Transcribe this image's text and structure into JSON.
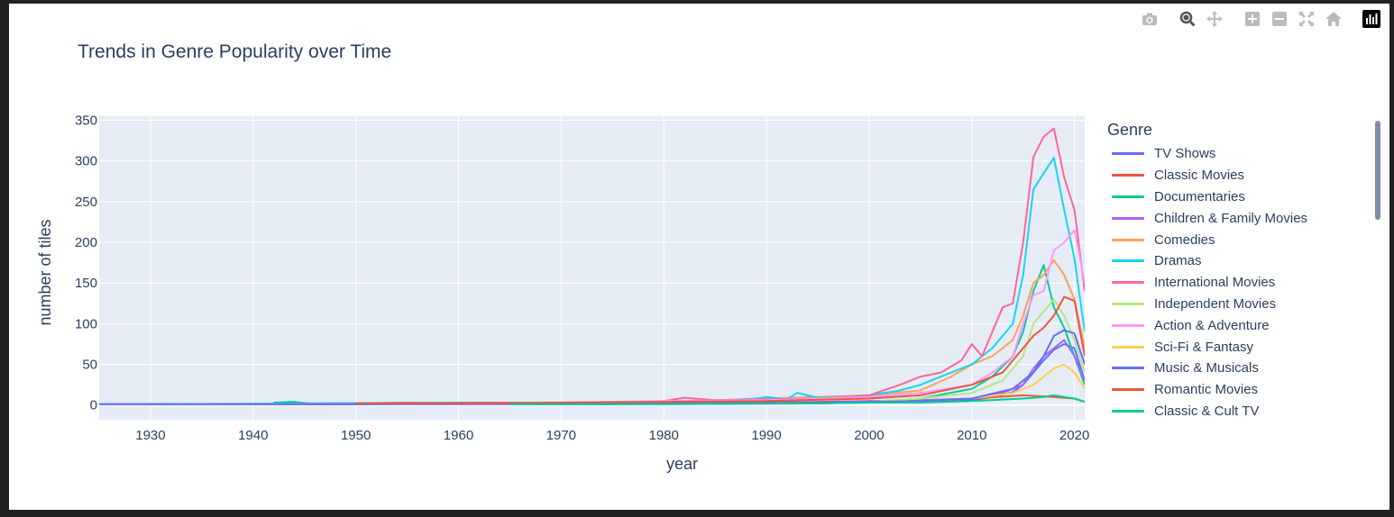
{
  "modebar": {
    "buttons": [
      {
        "name": "camera-icon",
        "color": "#bbbbbb"
      },
      {
        "name": "zoom-icon",
        "color": "#555555"
      },
      {
        "name": "pan-icon",
        "color": "#bbbbbb"
      },
      {
        "name": "zoom-in-icon",
        "color": "#bbbbbb"
      },
      {
        "name": "zoom-out-icon",
        "color": "#bbbbbb"
      },
      {
        "name": "autoscale-icon",
        "color": "#bbbbbb"
      },
      {
        "name": "home-icon",
        "color": "#bbbbbb"
      },
      {
        "name": "plotly-logo-icon",
        "color": "#000000"
      }
    ]
  },
  "chart_data": {
    "type": "line",
    "title": "Trends in Genre Popularity over Time",
    "xlabel": "year",
    "ylabel": "number of tiles",
    "xlim": [
      1925,
      2021
    ],
    "ylim": [
      -18,
      355
    ],
    "x_ticks": [
      1930,
      1940,
      1950,
      1960,
      1970,
      1980,
      1990,
      2000,
      2010,
      2020
    ],
    "y_ticks": [
      0,
      50,
      100,
      150,
      200,
      250,
      300,
      350
    ],
    "grid": true,
    "plot_bgcolor": "#e5ecf6",
    "legend_title": "Genre",
    "legend_position": "right",
    "series": [
      {
        "name": "TV Shows",
        "color": "#636efa",
        "x": [
          1925,
          1975,
          1995,
          2000,
          2005,
          2010,
          2012,
          2014,
          2015,
          2016,
          2017,
          2018,
          2019,
          2020,
          2021
        ],
        "y": [
          1,
          1,
          2,
          3,
          4,
          6,
          10,
          16,
          25,
          40,
          55,
          68,
          75,
          70,
          30
        ]
      },
      {
        "name": "Classic Movies",
        "color": "#ef553b",
        "x": [
          1942,
          1950,
          1955,
          1960,
          1965,
          1970,
          1975,
          1980,
          1985,
          1990,
          1995,
          2000,
          2005,
          2010,
          2015,
          2018,
          2020,
          2021
        ],
        "y": [
          2,
          2,
          3,
          2,
          3,
          2,
          3,
          5,
          4,
          3,
          4,
          5,
          6,
          8,
          12,
          10,
          8,
          4
        ]
      },
      {
        "name": "Documentaries",
        "color": "#00cc96",
        "x": [
          1942,
          1944,
          1946,
          1950,
          1960,
          1970,
          1990,
          2000,
          2005,
          2010,
          2012,
          2014,
          2015,
          2016,
          2017,
          2018,
          2019,
          2020,
          2021
        ],
        "y": [
          3,
          4,
          1,
          2,
          2,
          3,
          3,
          4,
          8,
          20,
          35,
          60,
          90,
          140,
          172,
          120,
          95,
          60,
          25
        ]
      },
      {
        "name": "Children & Family Movies",
        "color": "#ab63fa",
        "x": [
          1960,
          1980,
          1995,
          2000,
          2005,
          2010,
          2013,
          2015,
          2016,
          2017,
          2018,
          2019,
          2020,
          2021
        ],
        "y": [
          1,
          2,
          3,
          5,
          6,
          8,
          15,
          25,
          45,
          60,
          70,
          80,
          60,
          30
        ]
      },
      {
        "name": "Comedies",
        "color": "#ffa15a",
        "x": [
          1955,
          1970,
          1980,
          1990,
          1995,
          2000,
          2005,
          2008,
          2010,
          2012,
          2014,
          2015,
          2016,
          2017,
          2018,
          2019,
          2020,
          2021
        ],
        "y": [
          2,
          3,
          4,
          8,
          10,
          12,
          18,
          35,
          50,
          60,
          80,
          110,
          150,
          160,
          178,
          160,
          130,
          70
        ]
      },
      {
        "name": "Dramas",
        "color": "#19d3f3",
        "x": [
          1930,
          1960,
          1970,
          1980,
          1985,
          1989,
          1990,
          1992,
          1993,
          1995,
          2000,
          2003,
          2005,
          2008,
          2010,
          2012,
          2014,
          2015,
          2016,
          2017,
          2018,
          2019,
          2020,
          2021
        ],
        "y": [
          1,
          3,
          3,
          4,
          5,
          8,
          10,
          7,
          15,
          9,
          12,
          18,
          25,
          40,
          50,
          70,
          100,
          160,
          265,
          285,
          304,
          240,
          180,
          90
        ]
      },
      {
        "name": "International Movies",
        "color": "#ff6692",
        "x": [
          1942,
          1970,
          1980,
          1982,
          1985,
          1990,
          1995,
          2000,
          2003,
          2005,
          2007,
          2009,
          2010,
          2011,
          2012,
          2013,
          2014,
          2015,
          2016,
          2017,
          2018,
          2019,
          2020,
          2021
        ],
        "y": [
          1,
          2,
          5,
          9,
          6,
          7,
          8,
          12,
          25,
          35,
          40,
          55,
          75,
          60,
          90,
          120,
          125,
          200,
          305,
          330,
          340,
          280,
          240,
          140
        ]
      },
      {
        "name": "Independent Movies",
        "color": "#b6e880",
        "x": [
          1970,
          1990,
          2000,
          2005,
          2010,
          2013,
          2015,
          2016,
          2017,
          2018,
          2019,
          2020,
          2021
        ],
        "y": [
          1,
          2,
          4,
          8,
          15,
          30,
          60,
          100,
          115,
          130,
          110,
          80,
          40
        ]
      },
      {
        "name": "Action & Adventure",
        "color": "#ff97ff",
        "x": [
          1960,
          1975,
          1980,
          1990,
          2000,
          2005,
          2010,
          2012,
          2014,
          2015,
          2016,
          2017,
          2018,
          2019,
          2020,
          2021
        ],
        "y": [
          2,
          4,
          5,
          6,
          10,
          15,
          25,
          40,
          60,
          100,
          135,
          140,
          190,
          200,
          215,
          150
        ]
      },
      {
        "name": "Sci-Fi & Fantasy",
        "color": "#fecb52",
        "x": [
          1980,
          1990,
          2000,
          2005,
          2010,
          2014,
          2016,
          2017,
          2018,
          2019,
          2020,
          2021
        ],
        "y": [
          1,
          2,
          3,
          5,
          8,
          15,
          25,
          35,
          45,
          50,
          40,
          20
        ]
      },
      {
        "name": "Music & Musicals",
        "color": "#636efa",
        "x": [
          1925,
          1940,
          1950,
          1960,
          1980,
          1990,
          2000,
          2005,
          2010,
          2014,
          2016,
          2017,
          2018,
          2019,
          2020,
          2021
        ],
        "y": [
          1,
          1,
          1,
          2,
          2,
          3,
          4,
          5,
          8,
          20,
          40,
          60,
          85,
          92,
          88,
          50
        ]
      },
      {
        "name": "Romantic Movies",
        "color": "#ef553b",
        "x": [
          1950,
          1970,
          1980,
          1990,
          2000,
          2005,
          2010,
          2013,
          2015,
          2016,
          2017,
          2018,
          2019,
          2020,
          2021
        ],
        "y": [
          2,
          3,
          4,
          5,
          8,
          12,
          25,
          40,
          70,
          85,
          95,
          110,
          133,
          128,
          60
        ]
      },
      {
        "name": "Classic & Cult TV",
        "color": "#00cc96",
        "x": [
          1965,
          1980,
          1995,
          2000,
          2005,
          2010,
          2015,
          2017,
          2018,
          2019,
          2020,
          2021
        ],
        "y": [
          1,
          1,
          2,
          3,
          3,
          5,
          8,
          10,
          12,
          10,
          8,
          4
        ]
      }
    ]
  }
}
